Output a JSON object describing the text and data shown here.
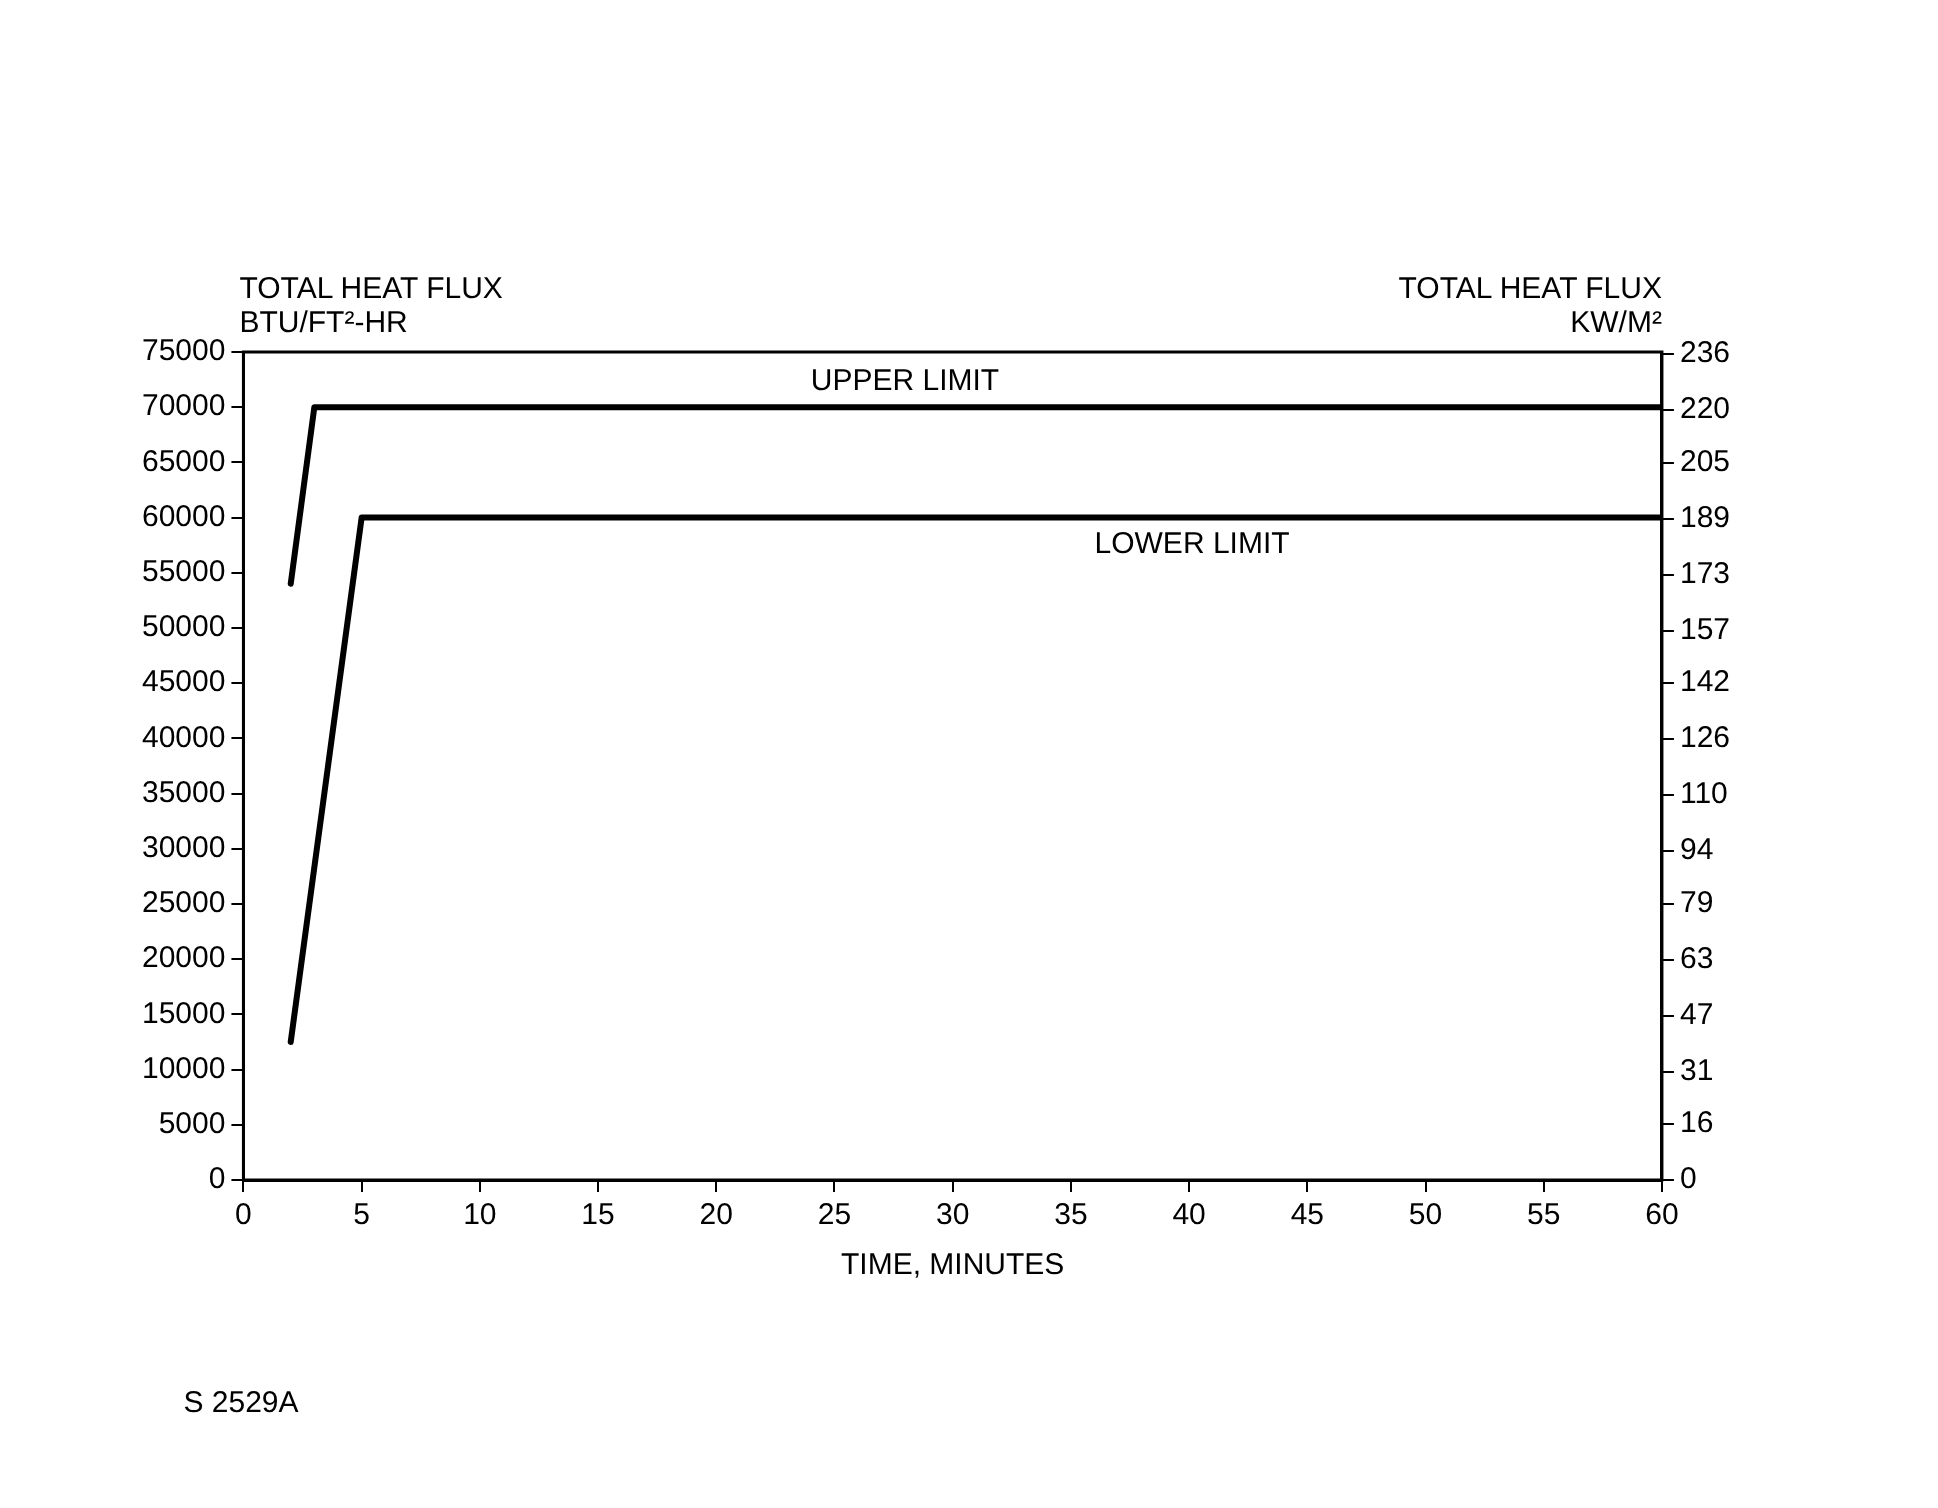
{
  "chart_data": {
    "type": "line",
    "ylabel": "TOTAL HEAT FLUX\nBTU/FT²-HR",
    "y2label": "TOTAL HEAT FLUX\nKW/M²",
    "xlabel": "TIME, MINUTES",
    "series": [
      {
        "name": null,
        "color": "#000000",
        "x": [
          2,
          3,
          60
        ],
        "values": [
          54000,
          70000,
          70000
        ]
      },
      {
        "name": null,
        "color": "#000000",
        "x": [
          2,
          5,
          60
        ],
        "values": [
          12500,
          60000,
          60000
        ]
      }
    ],
    "xlim": [
      0,
      60
    ],
    "xticks": [
      0,
      5,
      10,
      15,
      20,
      25,
      30,
      35,
      40,
      45,
      50,
      55,
      60
    ],
    "ylim": [
      0,
      75000
    ],
    "yticks": [
      0,
      5000,
      10000,
      15000,
      20000,
      25000,
      30000,
      35000,
      40000,
      45000,
      50000,
      55000,
      60000,
      65000,
      70000,
      75000
    ],
    "y2lim": [
      0,
      236.6
    ],
    "y2ticks": [
      0,
      16,
      31,
      47,
      63,
      79,
      94,
      110,
      126,
      142,
      157,
      173,
      189,
      205,
      220,
      236
    ],
    "annotations": [
      {
        "text": "UPPER LIMIT",
        "x": 24,
        "y": 70000
      },
      {
        "text": "LOWER LIMIT",
        "x": 36,
        "y": 60000
      },
      "S 2529A"
    ],
    "grid": false,
    "legend": false,
    "marker": "none",
    "line_style": "solid"
  }
}
